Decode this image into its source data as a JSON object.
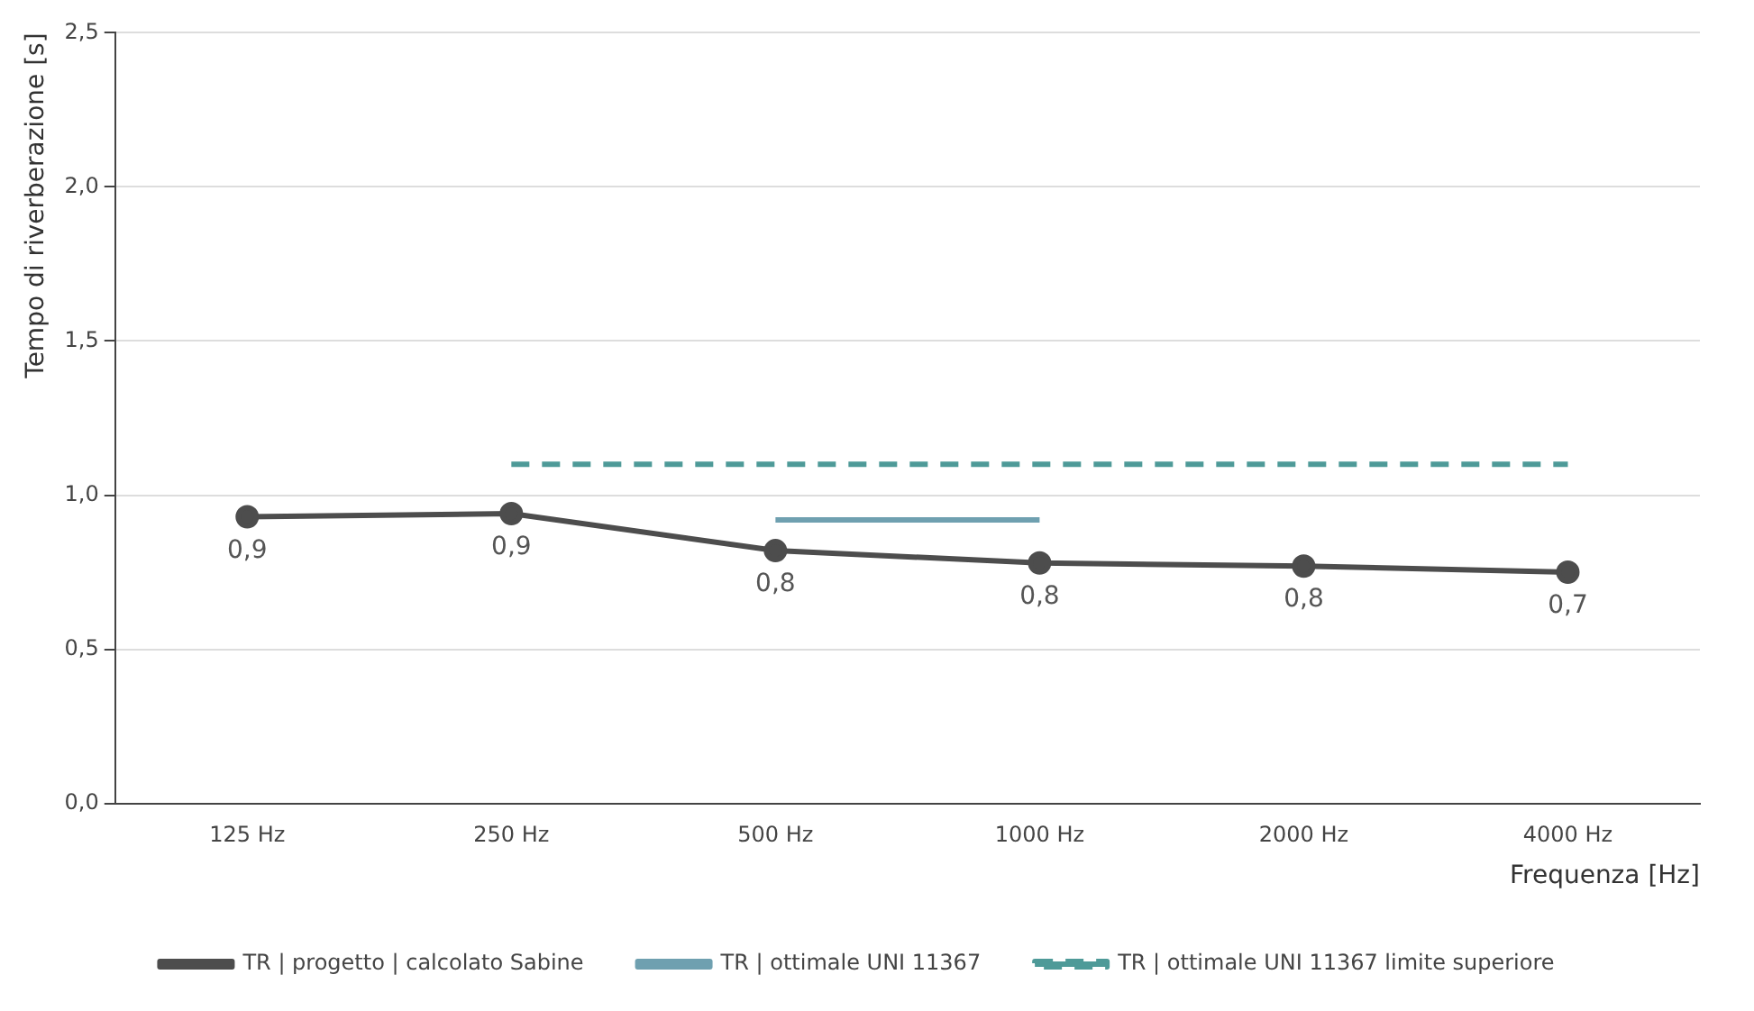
{
  "chart_data": {
    "type": "line",
    "xlabel": "Frequenza [Hz]",
    "ylabel": "Tempo di riverberazione [s]",
    "categories": [
      "125 Hz",
      "250 Hz",
      "500 Hz",
      "1000 Hz",
      "2000 Hz",
      "4000 Hz"
    ],
    "series": [
      {
        "name": "TR | progetto | calcolato Sabine",
        "color": "#4d4d4d",
        "values": [
          0.93,
          0.94,
          0.82,
          0.78,
          0.77,
          0.75
        ],
        "marker": "circle",
        "line_style": "solid",
        "value_labels": [
          "0,9",
          "0,9",
          "0,8",
          "0,8",
          "0,8",
          "0,7"
        ]
      },
      {
        "name": "TR | ottimale UNI 11367",
        "color": "#6fa0b0",
        "values": [
          null,
          null,
          0.92,
          0.92,
          null,
          null
        ],
        "marker": "none",
        "line_style": "solid"
      },
      {
        "name": "TR | ottimale UNI 11367 limite superiore",
        "color": "#4e9a98",
        "values": [
          null,
          1.1,
          1.1,
          1.1,
          1.1,
          1.1
        ],
        "marker": "none",
        "line_style": "dashed"
      }
    ],
    "ylim": [
      0,
      2.5
    ],
    "yticks": [
      {
        "value": 0,
        "label": "0,0"
      },
      {
        "value": 0.5,
        "label": "0,5"
      },
      {
        "value": 1,
        "label": "1,0"
      },
      {
        "value": 1.5,
        "label": "1,5"
      },
      {
        "value": 2,
        "label": "2,0"
      },
      {
        "value": 2.5,
        "label": "2,5"
      }
    ],
    "grid": "y",
    "legend": "bottom"
  }
}
